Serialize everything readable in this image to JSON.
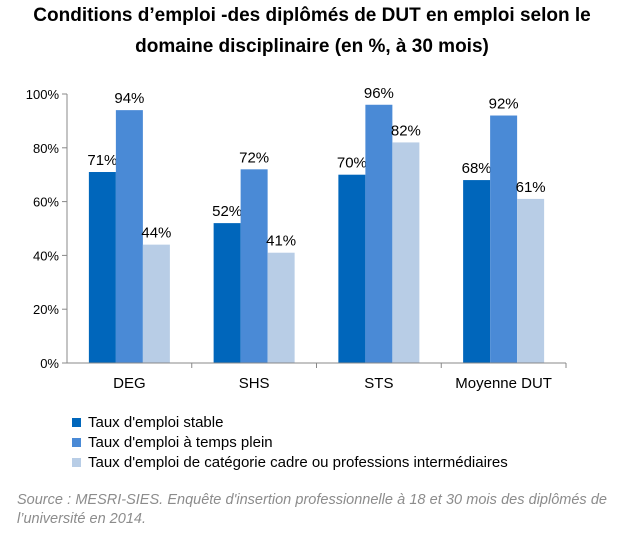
{
  "title_line1": "Conditions d’emploi ‑des diplômés de DUT en emploi selon le",
  "title_line2": "domaine disciplinaire (en %, à 30 mois)",
  "chart_data": {
    "type": "bar",
    "title": "Conditions d’emploi ‑des diplômés de DUT en emploi selon le domaine disciplinaire (en %, à 30 mois)",
    "categories": [
      "DEG",
      "SHS",
      "STS",
      "Moyenne DUT"
    ],
    "series": [
      {
        "name": "Taux d'emploi stable",
        "values": [
          71,
          52,
          70,
          68
        ],
        "color": "#0066bb"
      },
      {
        "name": "Taux d'emploi à temps plein",
        "values": [
          94,
          72,
          96,
          92
        ],
        "color": "#4a8ad6"
      },
      {
        "name": "Taux d'emploi de catégorie cadre ou professions intermédiaires",
        "values": [
          44,
          41,
          82,
          61
        ],
        "color": "#b8cde6"
      }
    ],
    "yticks": [
      "0%",
      "20%",
      "40%",
      "60%",
      "80%",
      "100%"
    ],
    "ylim": [
      0,
      100
    ],
    "value_suffix": "%",
    "xlabel": "",
    "ylabel": "",
    "legend_position": "bottom-left"
  },
  "source": "Source : MESRI-SIES. Enquête d'insertion professionnelle à 18 et 30 mois des diplômés de l’université en 2014."
}
